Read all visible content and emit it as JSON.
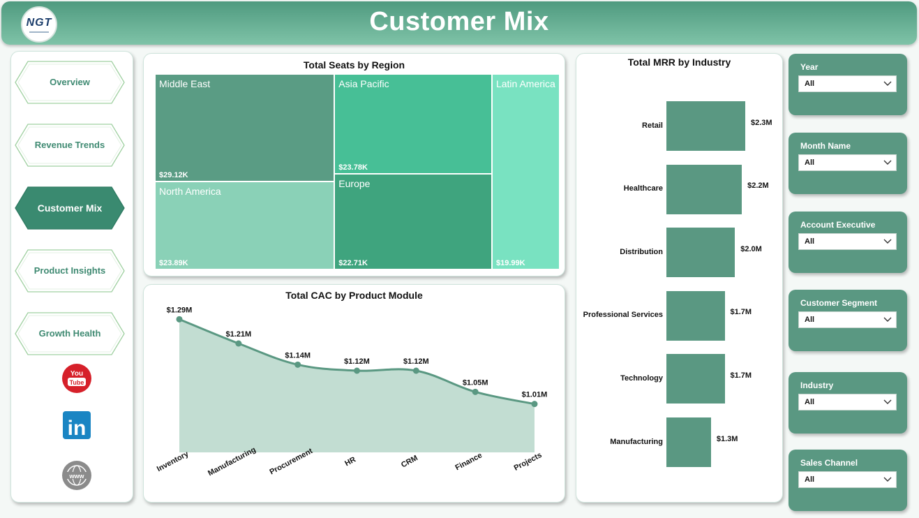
{
  "header": {
    "logo_text": "NGT",
    "title": "Customer Mix"
  },
  "nav": {
    "items": [
      {
        "label": "Overview",
        "active": false
      },
      {
        "label": "Revenue Trends",
        "active": false
      },
      {
        "label": "Customer Mix",
        "active": true
      },
      {
        "label": "Product Insights",
        "active": false
      },
      {
        "label": "Growth Health",
        "active": false
      }
    ],
    "social": [
      {
        "icon": "youtube-icon",
        "text": "You Tube"
      },
      {
        "icon": "linkedin-icon",
        "text": "in"
      },
      {
        "icon": "globe-icon",
        "text": "www"
      }
    ]
  },
  "colors": {
    "accent": "#5a9882",
    "header_from": "#4f9a7f",
    "header_to": "#7fc3a8",
    "area_fill": "#c2ddd2"
  },
  "chart_data": [
    {
      "type": "treemap",
      "title": "Total Seats by Region",
      "cells": [
        {
          "name": "Middle East",
          "label": "$29.12K",
          "value": 29.12,
          "color": "#5a9c84"
        },
        {
          "name": "North America",
          "label": "$23.89K",
          "value": 23.89,
          "color": "#8ad1b7"
        },
        {
          "name": "Asia Pacific",
          "label": "$23.78K",
          "value": 23.78,
          "color": "#47bf96"
        },
        {
          "name": "Europe",
          "label": "$22.71K",
          "value": 22.71,
          "color": "#3fa47e"
        },
        {
          "name": "Latin America",
          "label": "$19.99K",
          "value": 19.99,
          "color": "#79e2c1"
        }
      ]
    },
    {
      "type": "area",
      "title": "Total CAC by Product Module",
      "categories": [
        "Inventory",
        "Manufacturing",
        "Procurement",
        "HR",
        "CRM",
        "Finance",
        "Projects"
      ],
      "values": [
        1.29,
        1.21,
        1.14,
        1.12,
        1.12,
        1.05,
        1.01
      ],
      "labels": [
        "$1.29M",
        "$1.21M",
        "$1.14M",
        "$1.12M",
        "$1.12M",
        "$1.05M",
        "$1.01M"
      ],
      "ylim": [
        0.85,
        1.3
      ]
    },
    {
      "type": "bar",
      "title": "Total MRR by Industry",
      "categories": [
        "Retail",
        "Healthcare",
        "Distribution",
        "Professional Services",
        "Technology",
        "Manufacturing"
      ],
      "values": [
        2.3,
        2.2,
        2.0,
        1.7,
        1.7,
        1.3
      ],
      "labels": [
        "$2.3M",
        "$2.2M",
        "$2.0M",
        "$1.7M",
        "$1.7M",
        "$1.3M"
      ],
      "xlim": [
        0,
        2.3
      ]
    }
  ],
  "slicers": [
    {
      "label": "Year",
      "value": "All"
    },
    {
      "label": "Month Name",
      "value": "All"
    },
    {
      "label": "Account Executive",
      "value": "All"
    },
    {
      "label": "Customer Segment",
      "value": "All"
    },
    {
      "label": "Industry",
      "value": "All"
    },
    {
      "label": "Sales Channel",
      "value": "All"
    }
  ]
}
